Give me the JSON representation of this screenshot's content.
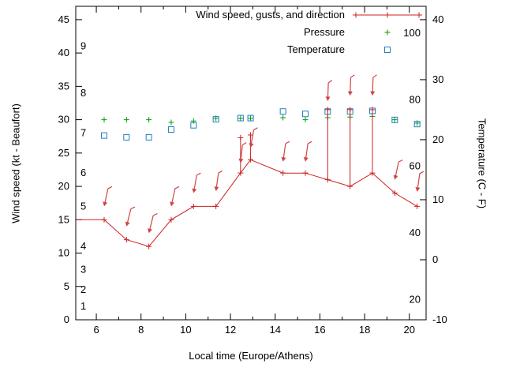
{
  "figure": {
    "background": "#ffffff",
    "border_color": "#000000"
  },
  "legend": {
    "entries": [
      {
        "id": "wind",
        "label": "Wind speed, gusts, and direction",
        "color": "#cc2020",
        "marker": "line-plus"
      },
      {
        "id": "pressure",
        "label": "Pressure",
        "color": "#00a000",
        "marker": "plus"
      },
      {
        "id": "temperature",
        "label": "Temperature",
        "color": "#2080c0",
        "marker": "open-square"
      }
    ]
  },
  "axes": {
    "x": {
      "title": "Local time (Europe/Athens)",
      "min": 5.08,
      "max": 20.75,
      "major_ticks": [
        6,
        8,
        10,
        12,
        14,
        16,
        18,
        20
      ],
      "minor_ticks": [
        7,
        9,
        11,
        13,
        15,
        17,
        19
      ]
    },
    "y_left": {
      "title": "Wind speed (kt - Beaufort)",
      "min": 0,
      "max": 47,
      "ticks": [
        0,
        5,
        10,
        15,
        20,
        25,
        30,
        35,
        40,
        45
      ],
      "beaufort_labels": [
        {
          "label": "1",
          "kt": 2
        },
        {
          "label": "2",
          "kt": 4.5
        },
        {
          "label": "3",
          "kt": 7.5
        },
        {
          "label": "4",
          "kt": 11
        },
        {
          "label": "5",
          "kt": 17
        },
        {
          "label": "6",
          "kt": 22
        },
        {
          "label": "7",
          "kt": 28
        },
        {
          "label": "8",
          "kt": 34
        },
        {
          "label": "9",
          "kt": 41
        }
      ]
    },
    "y_right": {
      "title": "Temperature (C - F)",
      "ticks_c": [
        -10,
        0,
        10,
        20,
        30,
        40
      ],
      "fahrenheit_labels": [
        20,
        40,
        60,
        80,
        100
      ]
    }
  },
  "chart_data": {
    "type": "line",
    "title": "Wind speed, gusts, and direction / Pressure / Temperature",
    "xlabel": "Local time (Europe/Athens)",
    "ylabel": "Wind speed (kt - Beaufort)",
    "y2label": "Temperature (C - F)",
    "x_range": [
      5.08,
      20.75
    ],
    "y_left_range_kt": [
      0,
      47
    ],
    "y_right_range_c": [
      -10,
      42.2
    ],
    "grid": false,
    "legend_position": "top-center-inside",
    "series": [
      {
        "name": "Wind speed, gusts, and direction",
        "type": "line+gustbars+direction-arrows",
        "unit": "kt",
        "color": "#cc2020",
        "arrow_color": "#d04545",
        "edge_start": {
          "t": 5.08,
          "wind": 15
        },
        "points": [
          {
            "t": 6.35,
            "wind": 15,
            "arrow_at": 17,
            "tilt": 12
          },
          {
            "t": 7.35,
            "wind": 12,
            "arrow_at": 14,
            "tilt": 14
          },
          {
            "t": 8.35,
            "wind": 11,
            "arrow_at": 13,
            "tilt": 14
          },
          {
            "t": 9.35,
            "wind": 15,
            "arrow_at": 17,
            "tilt": 12
          },
          {
            "t": 10.35,
            "wind": 17,
            "arrow_at": 19,
            "tilt": 10
          },
          {
            "t": 11.35,
            "wind": 17,
            "arrow_at": 19.3,
            "tilt": 8
          },
          {
            "t": 12.45,
            "wind": 22,
            "gust": 27.3,
            "arrow_at": 23.5,
            "tilt": 6
          },
          {
            "t": 12.9,
            "wind": 24,
            "gust": 27.7,
            "arrow_at": 25.8,
            "tilt": 10
          },
          {
            "t": 14.35,
            "wind": 22,
            "arrow_at": 23.7,
            "tilt": 8
          },
          {
            "t": 15.35,
            "wind": 22,
            "arrow_at": 23.7,
            "tilt": 8
          },
          {
            "t": 16.35,
            "wind": 21,
            "gust": 31.5,
            "arrow_at": 32.8,
            "tilt": 2
          },
          {
            "t": 17.35,
            "wind": 20,
            "gust": 31.5,
            "arrow_at": 33.6,
            "tilt": 2
          },
          {
            "t": 18.35,
            "wind": 22,
            "gust": 31.5,
            "arrow_at": 33.6,
            "tilt": 2
          },
          {
            "t": 19.35,
            "wind": 19,
            "arrow_at": 21,
            "tilt": 12
          },
          {
            "t": 20.35,
            "wind": 17,
            "arrow_at": 19.2,
            "tilt": 8
          }
        ]
      },
      {
        "name": "Pressure",
        "type": "points",
        "marker": "plus",
        "unit": "left-axis position",
        "color": "#00a000",
        "points": [
          {
            "t": 6.35,
            "y": 30.0
          },
          {
            "t": 7.35,
            "y": 30.0
          },
          {
            "t": 8.35,
            "y": 30.0
          },
          {
            "t": 9.35,
            "y": 29.6
          },
          {
            "t": 10.35,
            "y": 29.8
          },
          {
            "t": 11.35,
            "y": 30.2
          },
          {
            "t": 12.45,
            "y": 30.2
          },
          {
            "t": 12.9,
            "y": 30.2
          },
          {
            "t": 14.35,
            "y": 30.3
          },
          {
            "t": 15.35,
            "y": 30.0
          },
          {
            "t": 16.35,
            "y": 30.3
          },
          {
            "t": 17.35,
            "y": 30.4
          },
          {
            "t": 18.35,
            "y": 30.5
          },
          {
            "t": 19.35,
            "y": 30.0
          },
          {
            "t": 20.35,
            "y": 29.5
          }
        ]
      },
      {
        "name": "Temperature",
        "type": "points",
        "marker": "open-square",
        "unit": "C",
        "color": "#2080c0",
        "points": [
          {
            "t": 6.35,
            "c": 20.7
          },
          {
            "t": 7.35,
            "c": 20.4
          },
          {
            "t": 8.35,
            "c": 20.4
          },
          {
            "t": 9.35,
            "c": 21.7
          },
          {
            "t": 10.35,
            "c": 22.4
          },
          {
            "t": 11.35,
            "c": 23.4
          },
          {
            "t": 12.45,
            "c": 23.6
          },
          {
            "t": 12.9,
            "c": 23.6
          },
          {
            "t": 14.35,
            "c": 24.7
          },
          {
            "t": 15.35,
            "c": 24.3
          },
          {
            "t": 16.35,
            "c": 24.7
          },
          {
            "t": 17.35,
            "c": 24.7
          },
          {
            "t": 18.35,
            "c": 24.8
          },
          {
            "t": 19.35,
            "c": 23.3
          },
          {
            "t": 20.35,
            "c": 22.6
          }
        ]
      }
    ]
  }
}
